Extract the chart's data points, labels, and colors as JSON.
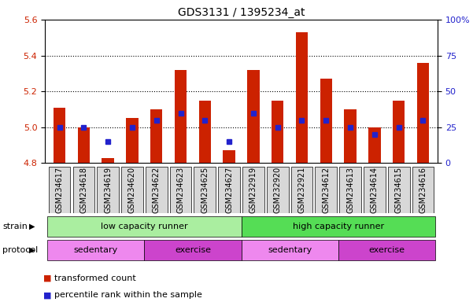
{
  "title": "GDS3131 / 1395234_at",
  "samples": [
    "GSM234617",
    "GSM234618",
    "GSM234619",
    "GSM234620",
    "GSM234622",
    "GSM234623",
    "GSM234625",
    "GSM234627",
    "GSM232919",
    "GSM232920",
    "GSM232921",
    "GSM234612",
    "GSM234613",
    "GSM234614",
    "GSM234615",
    "GSM234616"
  ],
  "transformed_count": [
    5.11,
    5.0,
    4.83,
    5.05,
    5.1,
    5.32,
    5.15,
    4.87,
    5.32,
    5.15,
    5.53,
    5.27,
    5.1,
    5.0,
    5.15,
    5.36
  ],
  "percentile_rank": [
    25,
    25,
    15,
    25,
    30,
    35,
    30,
    15,
    35,
    25,
    30,
    30,
    25,
    20,
    25,
    30
  ],
  "bar_bottom": 4.8,
  "ylim_left": [
    4.8,
    5.6
  ],
  "ylim_right": [
    0,
    100
  ],
  "yticks_left": [
    4.8,
    5.0,
    5.2,
    5.4,
    5.6
  ],
  "yticks_right": [
    0,
    25,
    50,
    75,
    100
  ],
  "bar_color": "#cc2200",
  "dot_color": "#2222cc",
  "grid_color": "#000000",
  "strain_groups": [
    {
      "label": "low capacity runner",
      "start": 0,
      "end": 8,
      "color": "#aaeea0"
    },
    {
      "label": "high capacity runner",
      "start": 8,
      "end": 16,
      "color": "#55dd55"
    }
  ],
  "protocol_groups": [
    {
      "label": "sedentary",
      "start": 0,
      "end": 4,
      "color": "#ee88ee"
    },
    {
      "label": "exercise",
      "start": 4,
      "end": 8,
      "color": "#cc44cc"
    },
    {
      "label": "sedentary",
      "start": 8,
      "end": 12,
      "color": "#ee88ee"
    },
    {
      "label": "exercise",
      "start": 12,
      "end": 16,
      "color": "#cc44cc"
    }
  ],
  "legend_items": [
    {
      "label": "transformed count",
      "color": "#cc2200"
    },
    {
      "label": "percentile rank within the sample",
      "color": "#2222cc"
    }
  ],
  "strain_label": "strain",
  "protocol_label": "protocol",
  "tick_label_fontsize": 7,
  "axis_label_color_left": "#cc2200",
  "axis_label_color_right": "#2222cc",
  "gridline_values": [
    5.0,
    5.2,
    5.4
  ]
}
